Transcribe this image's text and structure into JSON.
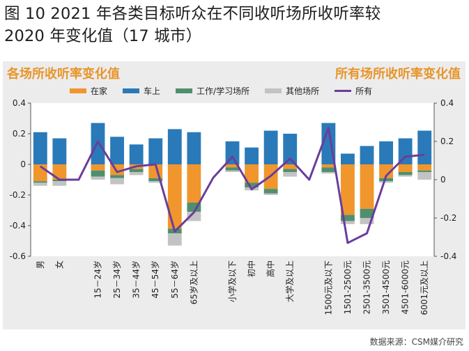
{
  "figure_title_line1": "图 10 2021 年各类目标听众在不同收听场所收听率较",
  "figure_title_line2": "2020 年变化值（17 城市）",
  "left_panel_title": "各场所收听率变化值",
  "right_panel_title": "所有场所收听率变化值",
  "source": "数据来源：CSM媒介研究",
  "colors": {
    "home": "#f0962d",
    "car": "#2a7ab9",
    "work": "#4f8f6f",
    "other": "#c3c3c3",
    "all": "#6a3d9a"
  },
  "chart_data": {
    "type": "bar",
    "stacked": true,
    "categories": [
      "男",
      "女",
      "",
      "15－24岁",
      "25－34岁",
      "35－44岁",
      "45－54岁",
      "55－64岁",
      "65岁及以上",
      "",
      "小学及以下",
      "初中",
      "高中",
      "大学及以上",
      "",
      "1500元及以下",
      "1501-2500元",
      "2501-3500元",
      "3501-4500元",
      "4501-6000元",
      "6001元及以上"
    ],
    "left_axis": {
      "ylim": [
        -0.6,
        0.4
      ],
      "ticks": [
        "0.4",
        "0.2",
        "0",
        "-0.2",
        "-0.4",
        "-0.6"
      ]
    },
    "right_axis": {
      "ylim": [
        -0.4,
        0.4
      ],
      "ticks": [
        "0.4",
        "0.2",
        "0",
        "-0.2",
        "-0.4"
      ]
    },
    "series": [
      {
        "name": "在家",
        "key": "home",
        "axis": "left",
        "values": [
          -0.11,
          -0.1,
          null,
          -0.04,
          -0.07,
          -0.03,
          -0.09,
          -0.42,
          -0.25,
          null,
          -0.02,
          -0.12,
          -0.16,
          -0.03,
          null,
          -0.02,
          -0.33,
          -0.29,
          -0.09,
          -0.05,
          -0.04
        ]
      },
      {
        "name": "车上",
        "key": "car",
        "axis": "left",
        "values": [
          0.21,
          0.17,
          null,
          0.27,
          0.18,
          0.13,
          0.17,
          0.23,
          0.21,
          null,
          0.15,
          0.11,
          0.22,
          0.2,
          null,
          0.27,
          0.07,
          0.12,
          0.15,
          0.17,
          0.22
        ]
      },
      {
        "name": "工作/学习场所",
        "key": "work",
        "axis": "left",
        "values": [
          -0.01,
          -0.01,
          null,
          -0.04,
          -0.02,
          -0.02,
          -0.02,
          -0.03,
          -0.06,
          null,
          -0.02,
          -0.03,
          -0.03,
          -0.02,
          null,
          -0.03,
          -0.04,
          -0.06,
          -0.02,
          -0.02,
          -0.01
        ]
      },
      {
        "name": "其他场所",
        "key": "other",
        "axis": "left",
        "values": [
          -0.02,
          -0.03,
          null,
          -0.02,
          -0.04,
          -0.02,
          -0.01,
          -0.08,
          -0.06,
          null,
          -0.01,
          -0.02,
          -0.01,
          -0.03,
          null,
          -0.01,
          -0.02,
          -0.04,
          -0.01,
          -0.01,
          -0.05
        ]
      }
    ],
    "line": {
      "name": "所有",
      "key": "all",
      "axis": "right",
      "values": [
        0.07,
        0.0,
        0.0,
        0.2,
        0.04,
        0.07,
        0.08,
        -0.27,
        -0.17,
        0.01,
        0.12,
        -0.05,
        0.02,
        0.11,
        0.0,
        0.27,
        -0.33,
        -0.28,
        0.02,
        0.12,
        0.13
      ]
    }
  }
}
